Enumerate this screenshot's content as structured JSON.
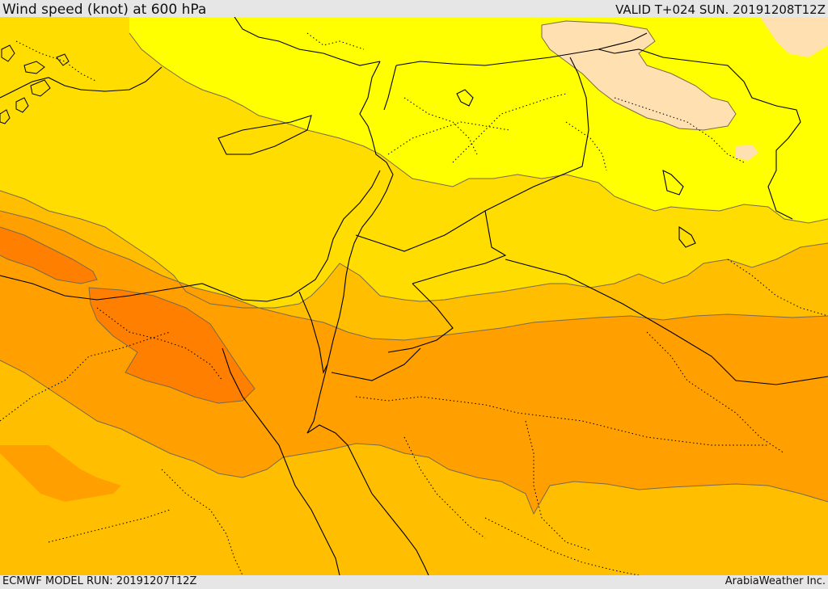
{
  "header": {
    "title": "Wind speed (knot) at 600 hPa",
    "valid": "VALID T+024 SUN. 20191208T12Z"
  },
  "footer": {
    "model_run": "ECMWF MODEL RUN: 20191207T12Z",
    "credit": "ArabiaWeather Inc."
  },
  "map": {
    "color_bands": {
      "band_1": "#ffe0b0",
      "band_2": "#ffff00",
      "band_3": "#ffdd00",
      "band_4": "#ffbf00",
      "band_5": "#ff9f00",
      "band_6": "#ff7f00"
    },
    "contour_color": "#7a6a4a",
    "border_color": "#000000"
  }
}
